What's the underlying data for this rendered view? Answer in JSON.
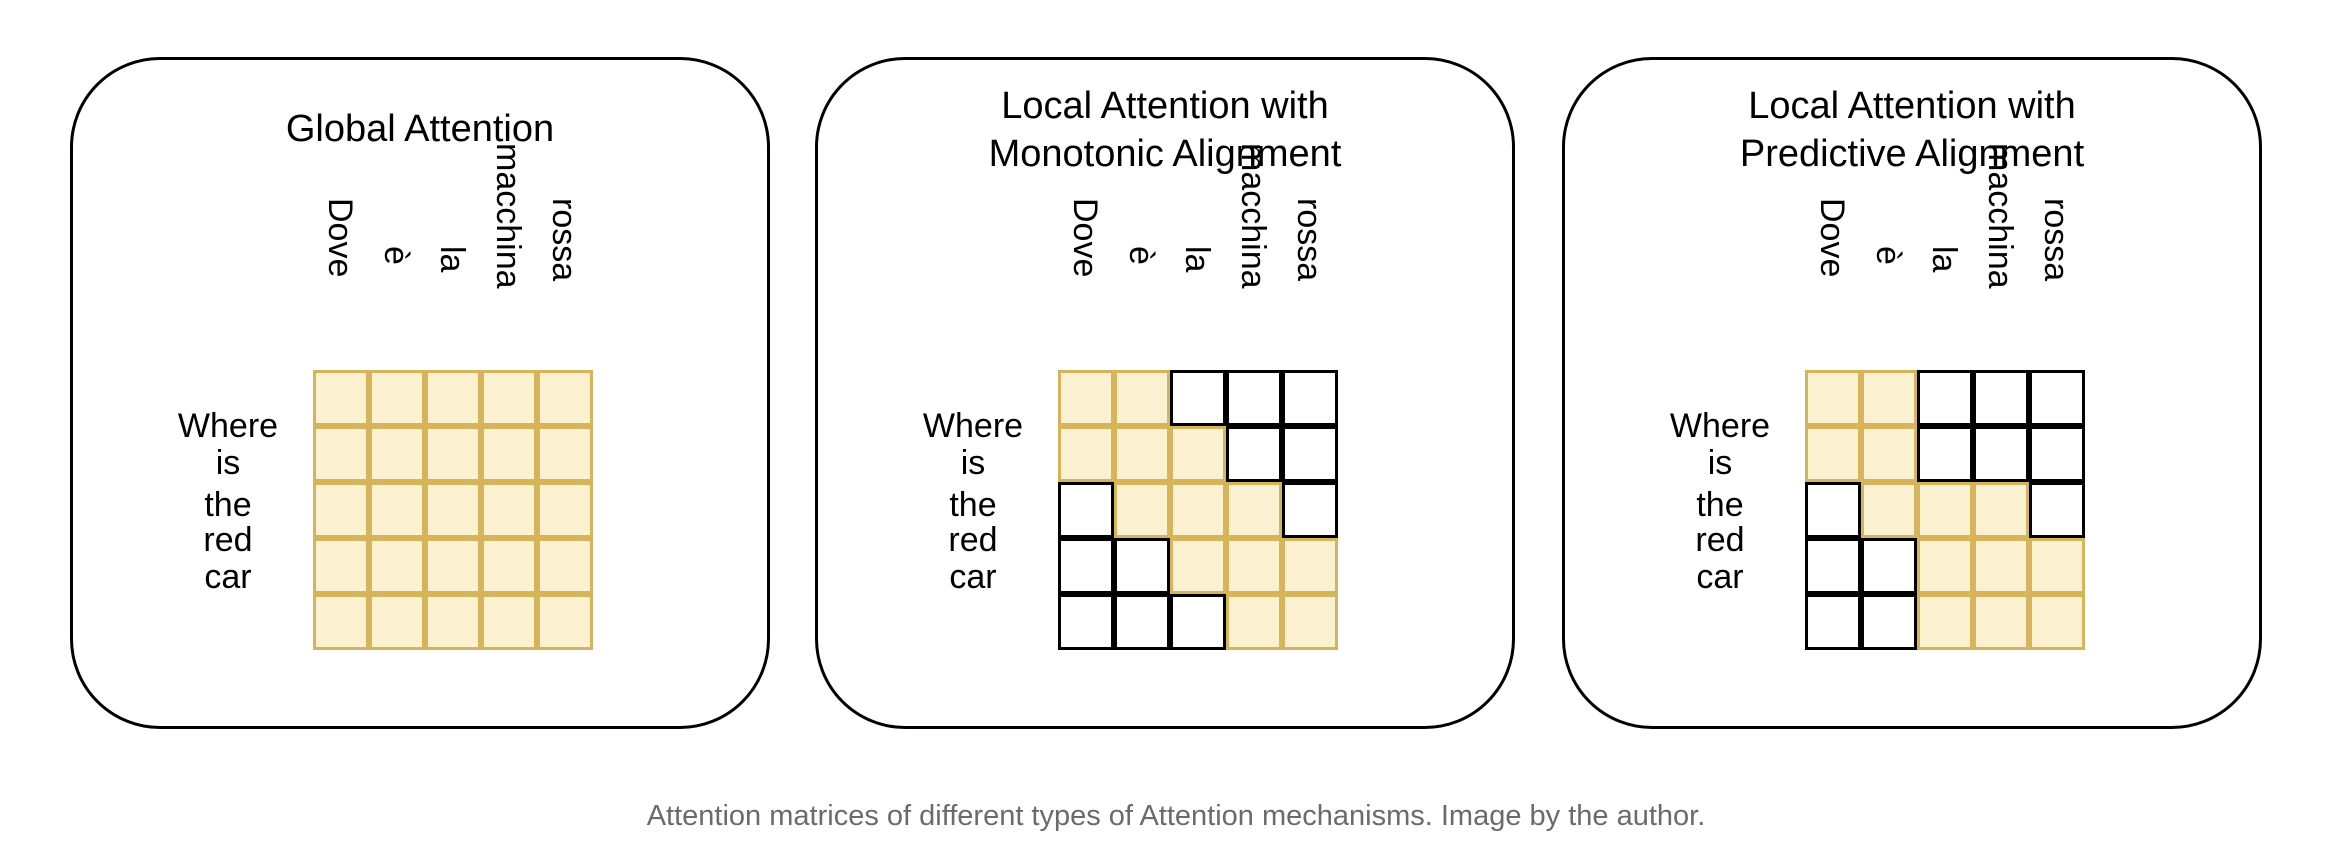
{
  "columns": [
    "Dove",
    "è",
    "la",
    "macchina",
    "rossa"
  ],
  "rows": [
    "Where",
    "is",
    "the",
    "red",
    "car"
  ],
  "panels": [
    {
      "title_lines": [
        "Global Attention"
      ],
      "attention_mask": [
        [
          1,
          1,
          1,
          1,
          1
        ],
        [
          1,
          1,
          1,
          1,
          1
        ],
        [
          1,
          1,
          1,
          1,
          1
        ],
        [
          1,
          1,
          1,
          1,
          1
        ],
        [
          1,
          1,
          1,
          1,
          1
        ]
      ]
    },
    {
      "title_lines": [
        "Local Attention with",
        "Monotonic Alignment"
      ],
      "attention_mask": [
        [
          1,
          1,
          0,
          0,
          0
        ],
        [
          1,
          1,
          1,
          0,
          0
        ],
        [
          0,
          1,
          1,
          1,
          0
        ],
        [
          0,
          0,
          1,
          1,
          1
        ],
        [
          0,
          0,
          0,
          1,
          1
        ]
      ]
    },
    {
      "title_lines": [
        "Local Attention with",
        "Predictive Alignment"
      ],
      "attention_mask": [
        [
          1,
          1,
          0,
          0,
          0
        ],
        [
          1,
          1,
          0,
          0,
          0
        ],
        [
          0,
          1,
          1,
          1,
          0
        ],
        [
          0,
          0,
          1,
          1,
          1
        ],
        [
          0,
          0,
          1,
          1,
          1
        ]
      ]
    }
  ],
  "colors": {
    "attended_fill": "#fbf0cf",
    "attended_border": "#d6b45c",
    "masked_border": "#000000"
  },
  "caption": "Attention matrices of different types of Attention mechanisms. Image by the author."
}
